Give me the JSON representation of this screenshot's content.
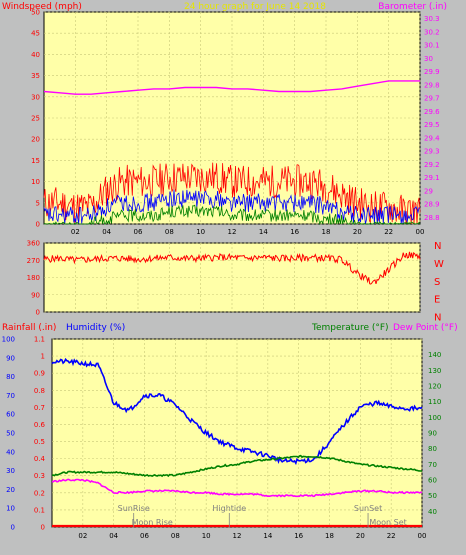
{
  "chart_data": [
    {
      "type": "line",
      "title": "24 hour graph for  June 14 2018",
      "left_label": "Windspeed (mph)",
      "right_label": "Barometer (.in)",
      "x_ticks": [
        "02",
        "04",
        "06",
        "08",
        "10",
        "12",
        "14",
        "16",
        "18",
        "20",
        "22",
        "00"
      ],
      "y_left_ticks": [
        "0",
        "5",
        "10",
        "15",
        "20",
        "25",
        "30",
        "35",
        "40",
        "45",
        "50"
      ],
      "y_left_range": [
        0,
        50
      ],
      "y_right_ticks": [
        "28.8",
        "28.9",
        "29",
        "29.1",
        "29.2",
        "29.3",
        "29.4",
        "29.5",
        "29.6",
        "29.7",
        "29.8",
        "29.9",
        "30",
        "30.1",
        "30.2",
        "30.3"
      ],
      "y_right_range": [
        28.75,
        30.35
      ],
      "x_range_hours": [
        0,
        24
      ],
      "grid": true,
      "series": [
        {
          "color": "#ff0000",
          "axis": "left",
          "x": [
            0,
            1,
            2,
            3,
            4,
            5,
            6,
            7,
            8,
            9,
            10,
            11,
            12,
            13,
            14,
            15,
            16,
            17,
            18,
            19,
            20,
            21,
            22,
            23,
            24
          ],
          "values": [
            5,
            5,
            4,
            4,
            8,
            10,
            10,
            10,
            11,
            11,
            11,
            11,
            10,
            10,
            10,
            10,
            10,
            10,
            9,
            7,
            5,
            4,
            4,
            3,
            3
          ]
        },
        {
          "color": "#0000ff",
          "axis": "left",
          "x": [
            0,
            1,
            2,
            3,
            4,
            5,
            6,
            7,
            8,
            9,
            10,
            11,
            12,
            13,
            14,
            15,
            16,
            17,
            18,
            19,
            20,
            21,
            22,
            23,
            24
          ],
          "values": [
            2,
            2,
            2,
            2,
            4,
            5,
            5,
            5,
            6,
            6,
            6,
            6,
            5,
            5,
            5,
            5,
            5,
            5,
            4,
            3,
            2,
            2,
            2,
            2,
            2
          ]
        },
        {
          "color": "#008000",
          "axis": "left",
          "x": [
            0,
            1,
            2,
            3,
            4,
            5,
            6,
            7,
            8,
            9,
            10,
            11,
            12,
            13,
            14,
            15,
            16,
            17,
            18,
            19,
            20,
            21,
            22,
            23,
            24
          ],
          "values": [
            0,
            0,
            0,
            0,
            1,
            2,
            2,
            2,
            3,
            3,
            3,
            3,
            2,
            2,
            2,
            2,
            2,
            2,
            1,
            1,
            0,
            0,
            0,
            0,
            0
          ]
        },
        {
          "color": "#ff00ff",
          "axis": "right",
          "x": [
            0,
            1,
            2,
            3,
            4,
            5,
            6,
            7,
            8,
            9,
            10,
            11,
            12,
            13,
            14,
            15,
            16,
            17,
            18,
            19,
            20,
            21,
            22,
            23,
            24
          ],
          "values": [
            29.75,
            29.74,
            29.73,
            29.73,
            29.74,
            29.75,
            29.76,
            29.77,
            29.77,
            29.78,
            29.78,
            29.78,
            29.77,
            29.77,
            29.76,
            29.75,
            29.75,
            29.75,
            29.76,
            29.77,
            29.79,
            29.81,
            29.83,
            29.83,
            29.83
          ]
        }
      ]
    },
    {
      "type": "line",
      "y_left_ticks": [
        "0",
        "90",
        "180",
        "270",
        "360"
      ],
      "y_left_range": [
        0,
        360
      ],
      "right_ticks": [
        "N",
        "W",
        "S",
        "E",
        "N"
      ],
      "x_ticks": [
        "02",
        "04",
        "06",
        "08",
        "10",
        "12",
        "14",
        "16",
        "18",
        "20",
        "22",
        "00"
      ],
      "x_range_hours": [
        0,
        24
      ],
      "grid": true,
      "series": [
        {
          "color": "#ff0000",
          "axis": "left",
          "x": [
            0,
            1,
            2,
            3,
            4,
            5,
            6,
            7,
            8,
            9,
            10,
            11,
            12,
            13,
            14,
            15,
            16,
            17,
            18,
            19,
            20,
            21,
            22,
            23,
            24
          ],
          "values": [
            275,
            280,
            270,
            275,
            280,
            280,
            275,
            280,
            285,
            280,
            280,
            285,
            285,
            280,
            285,
            280,
            280,
            285,
            280,
            275,
            200,
            150,
            220,
            300,
            290
          ]
        }
      ]
    },
    {
      "type": "line",
      "left_label_1": "Rainfall (.in)",
      "left_label_2": "Humidity (%)",
      "right_label_1": "Temperature (°F)",
      "right_label_2": "Dew Point (°F)",
      "y_humidity_ticks": [
        "0",
        "10",
        "20",
        "30",
        "40",
        "50",
        "60",
        "70",
        "80",
        "90",
        "100"
      ],
      "y_humidity_range": [
        0,
        100
      ],
      "y_rain_ticks": [
        "0",
        "0.1",
        "0.2",
        "0.3",
        "0.4",
        "0.5",
        "0.6",
        "0.7",
        "0.8",
        "0.9",
        "1",
        "1.1"
      ],
      "y_rain_range": [
        0,
        1.1
      ],
      "y_temp_ticks": [
        "40",
        "50",
        "60",
        "70",
        "80",
        "90",
        "100",
        "110",
        "120",
        "130",
        "140"
      ],
      "y_temp_range": [
        30,
        150
      ],
      "x_ticks": [
        "02",
        "04",
        "06",
        "08",
        "10",
        "12",
        "14",
        "16",
        "18",
        "20",
        "22",
        "00"
      ],
      "x_range_hours": [
        0,
        24
      ],
      "grid": true,
      "annotations": [
        {
          "text": "SunRise",
          "hour": 5.3,
          "row": 1
        },
        {
          "text": "Moon Rise",
          "hour": 6.5,
          "row": 2
        },
        {
          "text": "Hightide",
          "hour": 11.5,
          "row": 1
        },
        {
          "text": "SunSet",
          "hour": 20.5,
          "row": 1
        },
        {
          "text": "Moon Set",
          "hour": 21.8,
          "row": 2
        }
      ],
      "series": [
        {
          "color": "#0000ff",
          "axis": "humidity",
          "x": [
            0,
            1,
            2,
            3,
            4,
            5,
            6,
            7,
            8,
            9,
            10,
            11,
            12,
            13,
            14,
            15,
            16,
            17,
            18,
            19,
            20,
            21,
            22,
            23,
            24
          ],
          "values": [
            88,
            88,
            87,
            86,
            66,
            62,
            70,
            70,
            65,
            57,
            50,
            45,
            42,
            40,
            38,
            35,
            35,
            36,
            45,
            55,
            64,
            66,
            64,
            63,
            63
          ]
        },
        {
          "color": "#008000",
          "axis": "temp",
          "x": [
            0,
            1,
            2,
            3,
            4,
            5,
            6,
            7,
            8,
            9,
            10,
            11,
            12,
            13,
            14,
            15,
            16,
            17,
            18,
            19,
            20,
            21,
            22,
            23,
            24
          ],
          "values": [
            63,
            65,
            65,
            65,
            65,
            64,
            63,
            63,
            63,
            65,
            67,
            69,
            70,
            72,
            73,
            74,
            75,
            75,
            74,
            72,
            70,
            69,
            68,
            67,
            66
          ]
        },
        {
          "color": "#ff00ff",
          "axis": "temp",
          "x": [
            0,
            1,
            2,
            3,
            4,
            5,
            6,
            7,
            8,
            9,
            10,
            11,
            12,
            13,
            14,
            15,
            16,
            17,
            18,
            19,
            20,
            21,
            22,
            23,
            24
          ],
          "values": [
            59,
            60,
            60,
            58,
            52,
            52,
            53,
            53,
            53,
            52,
            52,
            51,
            51,
            51,
            50,
            50,
            50,
            50,
            51,
            52,
            53,
            53,
            52,
            52,
            52
          ]
        },
        {
          "color": "#ff0000",
          "axis": "rain",
          "x": [
            0,
            1,
            2,
            3,
            4,
            5,
            6,
            7,
            8,
            9,
            10,
            11,
            12,
            13,
            14,
            15,
            16,
            17,
            18,
            19,
            20,
            21,
            22,
            23,
            24
          ],
          "values": [
            0,
            0,
            0,
            0,
            0,
            0,
            0,
            0,
            0,
            0,
            0,
            0,
            0,
            0,
            0,
            0,
            0,
            0,
            0,
            0,
            0,
            0,
            0,
            0,
            0
          ]
        }
      ]
    }
  ]
}
